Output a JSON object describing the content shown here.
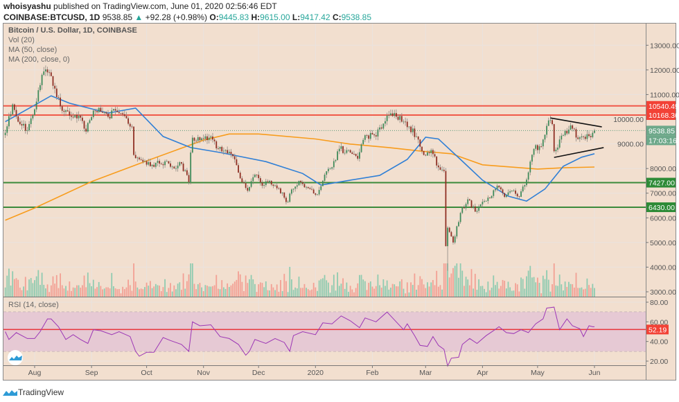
{
  "header": {
    "author": "whoisyashu",
    "published_text": "published on TradingView.com, June 01, 2020 02:56:46 EDT",
    "symbol": "COINBASE:BTCUSD, 1D",
    "last": "9538.85",
    "change_arrow": "▲",
    "change": "+92.28 (+0.98%)",
    "o_label": "O:",
    "o": "9445.83",
    "h_label": "H:",
    "h": "9615.00",
    "l_label": "L:",
    "l": "9417.42",
    "c_label": "C:",
    "c": "9538.85"
  },
  "legend": {
    "title": "Bitcoin / U.S. Dollar, 1D, COINBASE",
    "vol": "Vol (20)",
    "ma50": "MA (50, close)",
    "ma200": "MA (200, close, 0)",
    "rsi": "RSI (14, close)"
  },
  "footer": {
    "brand": "TradingView"
  },
  "colors": {
    "background": "#f2dfcf",
    "up": "#3f8a5a",
    "down": "#8e2f24",
    "ma50": "#2f7fd6",
    "ma200": "#f89c1c",
    "resistance": "#f0594a",
    "support": "#3a8a3a",
    "rsi_line": "#9c36b5",
    "rsi_band": "#e6c9d4"
  },
  "chart_data": {
    "type": "candlestick",
    "title": "Bitcoin / U.S. Dollar, 1D, COINBASE",
    "x_ticks": [
      {
        "label": "Aug",
        "date": "2019-08-01"
      },
      {
        "label": "Sep",
        "date": "2019-09-01"
      },
      {
        "label": "Oct",
        "date": "2019-10-01"
      },
      {
        "label": "Nov",
        "date": "2019-11-01"
      },
      {
        "label": "Dec",
        "date": "2019-12-01"
      },
      {
        "label": "2020",
        "date": "2020-01-01"
      },
      {
        "label": "Feb",
        "date": "2020-02-01"
      },
      {
        "label": "Mar",
        "date": "2020-03-01"
      },
      {
        "label": "Apr",
        "date": "2020-04-01"
      },
      {
        "label": "May",
        "date": "2020-05-01"
      },
      {
        "label": "Jun",
        "date": "2020-06-01"
      }
    ],
    "y_ticks": [
      "13000.00",
      "12000.00",
      "11000.00",
      "10000.00",
      "9000.00",
      "8000.00",
      "7000.00",
      "6000.00",
      "5000.00",
      "4000.00",
      "3000.00"
    ],
    "ylim": [
      2800,
      13800
    ],
    "price": {
      "dates": [
        "2019-07-16",
        "2019-07-20",
        "2019-07-24",
        "2019-07-28",
        "2019-08-01",
        "2019-08-05",
        "2019-08-09",
        "2019-08-13",
        "2019-08-17",
        "2019-08-21",
        "2019-08-25",
        "2019-08-29",
        "2019-09-02",
        "2019-09-06",
        "2019-09-10",
        "2019-09-14",
        "2019-09-18",
        "2019-09-23",
        "2019-09-24",
        "2019-09-30",
        "2019-10-04",
        "2019-10-08",
        "2019-10-12",
        "2019-10-16",
        "2019-10-20",
        "2019-10-24",
        "2019-10-25",
        "2019-10-26",
        "2019-11-01",
        "2019-11-05",
        "2019-11-09",
        "2019-11-13",
        "2019-11-17",
        "2019-11-21",
        "2019-11-25",
        "2019-11-29",
        "2019-12-03",
        "2019-12-07",
        "2019-12-11",
        "2019-12-17",
        "2019-12-19",
        "2019-12-23",
        "2019-12-27",
        "2020-01-02",
        "2020-01-06",
        "2020-01-10",
        "2020-01-14",
        "2020-01-20",
        "2020-01-24",
        "2020-01-28",
        "2020-02-03",
        "2020-02-09",
        "2020-02-13",
        "2020-02-17",
        "2020-02-21",
        "2020-02-25",
        "2020-02-29",
        "2020-03-04",
        "2020-03-08",
        "2020-03-11",
        "2020-03-12",
        "2020-03-13",
        "2020-03-16",
        "2020-03-20",
        "2020-03-24",
        "2020-03-28",
        "2020-04-01",
        "2020-04-05",
        "2020-04-09",
        "2020-04-13",
        "2020-04-17",
        "2020-04-21",
        "2020-04-25",
        "2020-04-29",
        "2020-05-03",
        "2020-05-07",
        "2020-05-09",
        "2020-05-10",
        "2020-05-15",
        "2020-05-19",
        "2020-05-23",
        "2020-05-27",
        "2020-05-31",
        "2020-06-01"
      ],
      "close": [
        9450,
        10600,
        9800,
        9550,
        10400,
        11800,
        11900,
        10900,
        10300,
        10100,
        10150,
        9500,
        10350,
        10300,
        10100,
        10350,
        10200,
        9700,
        8550,
        8300,
        8150,
        8200,
        8300,
        8000,
        8200,
        7450,
        8650,
        9250,
        9200,
        9300,
        8800,
        8750,
        8500,
        7600,
        7100,
        7750,
        7300,
        7500,
        7200,
        6650,
        7150,
        7500,
        7250,
        6950,
        7750,
        8050,
        8800,
        8650,
        8400,
        9350,
        9300,
        10150,
        10250,
        9900,
        9700,
        9300,
        8550,
        8750,
        8050,
        7900,
        4850,
        5600,
        5000,
        6200,
        6750,
        6250,
        6650,
        6800,
        7300,
        6850,
        7100,
        6850,
        7550,
        8800,
        8900,
        9950,
        9800,
        8700,
        9350,
        9750,
        9200,
        9200,
        9450,
        9538.85
      ]
    },
    "last_close": {
      "value": "9538.85",
      "countdown": "17:03:16"
    },
    "ma50": {
      "name": "MA (50, close)",
      "dates": [
        "2019-07-16",
        "2019-08-10",
        "2019-08-20",
        "2019-09-10",
        "2019-09-25",
        "2019-10-10",
        "2019-10-25",
        "2019-11-10",
        "2019-12-05",
        "2019-12-25",
        "2020-01-04",
        "2020-01-20",
        "2020-02-05",
        "2020-02-20",
        "2020-03-01",
        "2020-03-08",
        "2020-03-20",
        "2020-04-01",
        "2020-04-15",
        "2020-04-25",
        "2020-05-05",
        "2020-05-15",
        "2020-05-25",
        "2020-06-01"
      ],
      "values": [
        9900,
        10950,
        10650,
        10250,
        10450,
        9300,
        8850,
        8650,
        8280,
        7800,
        7330,
        7530,
        7720,
        8370,
        9270,
        9200,
        8370,
        7530,
        6880,
        6680,
        7170,
        8090,
        8460,
        8600
      ]
    },
    "ma200": {
      "name": "MA (200, close, 0)",
      "dates": [
        "2019-07-16",
        "2019-08-01",
        "2019-09-01",
        "2019-10-01",
        "2019-11-01",
        "2019-11-15",
        "2019-12-01",
        "2020-01-01",
        "2020-01-20",
        "2020-02-10",
        "2020-02-28",
        "2020-03-15",
        "2020-04-01",
        "2020-05-01",
        "2020-05-15",
        "2020-06-01"
      ],
      "values": [
        5900,
        6400,
        7470,
        8310,
        9150,
        9400,
        9400,
        9200,
        8990,
        8850,
        8700,
        8600,
        8150,
        7980,
        8030,
        8060
      ]
    },
    "horizontal_levels": [
      {
        "label": "10540.49",
        "value": 10540.49,
        "kind": "resistance"
      },
      {
        "label": "10168.36",
        "value": 10168.36,
        "kind": "resistance"
      },
      {
        "label": "7427.00",
        "value": 7427.0,
        "kind": "support"
      },
      {
        "label": "6430.00",
        "value": 6430.0,
        "kind": "support"
      }
    ],
    "trendlines": [
      {
        "from": {
          "date": "2020-05-08",
          "value": 10050
        },
        "to": {
          "date": "2020-06-05",
          "value": 9690
        }
      },
      {
        "from": {
          "date": "2020-05-10",
          "value": 8450
        },
        "to": {
          "date": "2020-06-06",
          "value": 8850
        }
      }
    ],
    "rsi": {
      "name": "RSI (14, close)",
      "ylim": [
        10,
        85
      ],
      "y_ticks": [
        "80.00",
        "60.00",
        "40.00",
        "20.00"
      ],
      "band": [
        30,
        70
      ],
      "level": {
        "label": "52.19",
        "value": 52.19
      },
      "dates": [
        "2019-07-16",
        "2019-07-18",
        "2019-07-22",
        "2019-07-28",
        "2019-08-01",
        "2019-08-04",
        "2019-08-08",
        "2019-08-10",
        "2019-08-14",
        "2019-08-18",
        "2019-08-22",
        "2019-08-26",
        "2019-08-30",
        "2019-09-02",
        "2019-09-06",
        "2019-09-12",
        "2019-09-16",
        "2019-09-22",
        "2019-09-25",
        "2019-09-27",
        "2019-10-01",
        "2019-10-05",
        "2019-10-10",
        "2019-10-14",
        "2019-10-20",
        "2019-10-24",
        "2019-10-26",
        "2019-10-30",
        "2019-11-05",
        "2019-11-10",
        "2019-11-15",
        "2019-11-20",
        "2019-11-24",
        "2019-11-26",
        "2019-11-29",
        "2019-12-05",
        "2019-12-10",
        "2019-12-15",
        "2019-12-18",
        "2019-12-20",
        "2019-12-25",
        "2020-01-01",
        "2020-01-05",
        "2020-01-10",
        "2020-01-15",
        "2020-01-20",
        "2020-01-25",
        "2020-01-28",
        "2020-02-03",
        "2020-02-09",
        "2020-02-12",
        "2020-02-18",
        "2020-02-20",
        "2020-02-24",
        "2020-02-27",
        "2020-03-02",
        "2020-03-05",
        "2020-03-08",
        "2020-03-11",
        "2020-03-13",
        "2020-03-15",
        "2020-03-19",
        "2020-03-21",
        "2020-03-25",
        "2020-03-29",
        "2020-04-03",
        "2020-04-07",
        "2020-04-10",
        "2020-04-14",
        "2020-04-18",
        "2020-04-22",
        "2020-04-26",
        "2020-04-30",
        "2020-05-04",
        "2020-05-06",
        "2020-05-10",
        "2020-05-13",
        "2020-05-17",
        "2020-05-20",
        "2020-05-24",
        "2020-05-26",
        "2020-05-29",
        "2020-05-31",
        "2020-06-01"
      ],
      "values": [
        50,
        42,
        49,
        43,
        43,
        50,
        63,
        63,
        55,
        42,
        47,
        42,
        38,
        52,
        51,
        47,
        50,
        45,
        30,
        25,
        29,
        29,
        44,
        41,
        37,
        30,
        60,
        56,
        57,
        45,
        43,
        37,
        26,
        30,
        42,
        38,
        43,
        39,
        30,
        46,
        50,
        47,
        59,
        58,
        66,
        61,
        54,
        64,
        60,
        70,
        64,
        52,
        58,
        46,
        36,
        35,
        45,
        36,
        32,
        15,
        23,
        24,
        37,
        43,
        38,
        46,
        51,
        55,
        49,
        48,
        52,
        49,
        58,
        63,
        74,
        75,
        52,
        63,
        56,
        53,
        45,
        56,
        55,
        55
      ]
    }
  }
}
